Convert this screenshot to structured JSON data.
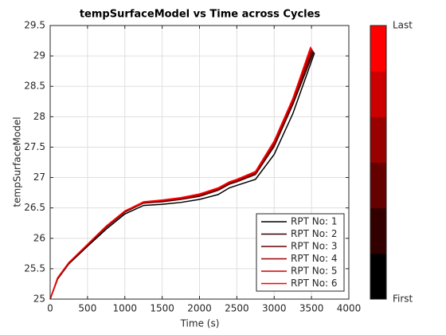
{
  "chart_data": {
    "type": "line",
    "title": "tempSurfaceModel vs Time  across Cycles",
    "xlabel": "Time (s)",
    "ylabel": "tempSurfaceModel",
    "xlim": [
      0,
      4000
    ],
    "xticks": [
      0,
      500,
      1000,
      1500,
      2000,
      2500,
      3000,
      3500,
      4000
    ],
    "ylim": [
      25,
      29.5
    ],
    "yticks": [
      25,
      25.5,
      26,
      26.5,
      27,
      27.5,
      28,
      28.5,
      29,
      29.5
    ],
    "grid": true,
    "legend": "lower right",
    "colorbar": {
      "top_label": "Last",
      "bottom_label": "First"
    },
    "series": [
      {
        "name": "RPT No: 1",
        "color": "#000000",
        "x": [
          0,
          100,
          250,
          500,
          750,
          1000,
          1250,
          1500,
          1750,
          2000,
          2250,
          2400,
          2500,
          2750,
          3000,
          3250,
          3540
        ],
        "values": [
          25.0,
          25.33,
          25.58,
          25.87,
          26.15,
          26.4,
          26.54,
          26.56,
          26.59,
          26.64,
          26.72,
          26.83,
          26.87,
          26.97,
          27.38,
          28.05,
          29.05
        ]
      },
      {
        "name": "RPT No: 2",
        "color": "#330000",
        "x": [
          0,
          100,
          250,
          500,
          750,
          1000,
          1250,
          1500,
          1750,
          2000,
          2250,
          2400,
          2500,
          2750,
          3000,
          3250,
          3530
        ],
        "values": [
          25.0,
          25.34,
          25.59,
          25.89,
          26.18,
          26.43,
          26.58,
          26.6,
          26.64,
          26.69,
          26.79,
          26.89,
          26.93,
          27.05,
          27.51,
          28.2,
          29.07
        ]
      },
      {
        "name": "RPT No: 3",
        "color": "#660000",
        "x": [
          0,
          100,
          250,
          500,
          750,
          1000,
          1250,
          1500,
          1750,
          2000,
          2250,
          2400,
          2500,
          2750,
          3000,
          3250,
          3520
        ],
        "values": [
          25.0,
          25.34,
          25.59,
          25.89,
          26.19,
          26.44,
          26.58,
          26.61,
          26.65,
          26.7,
          26.8,
          26.9,
          26.94,
          27.06,
          27.53,
          28.23,
          29.09
        ]
      },
      {
        "name": "RPT No: 4",
        "color": "#990000",
        "x": [
          0,
          100,
          250,
          500,
          750,
          1000,
          1250,
          1500,
          1750,
          2000,
          2250,
          2400,
          2500,
          2750,
          3000,
          3250,
          3510
        ],
        "values": [
          25.0,
          25.35,
          25.6,
          25.89,
          26.19,
          26.44,
          26.59,
          26.62,
          26.65,
          26.71,
          26.81,
          26.91,
          26.95,
          27.07,
          27.56,
          28.25,
          29.11
        ]
      },
      {
        "name": "RPT No: 5",
        "color": "#cc0000",
        "x": [
          0,
          100,
          250,
          500,
          750,
          1000,
          1250,
          1500,
          1750,
          2000,
          2250,
          2400,
          2500,
          2750,
          3000,
          3250,
          3500
        ],
        "values": [
          25.0,
          25.35,
          25.6,
          25.9,
          26.2,
          26.45,
          26.59,
          26.62,
          26.66,
          26.72,
          26.82,
          26.92,
          26.96,
          27.09,
          27.58,
          28.28,
          29.13
        ]
      },
      {
        "name": "RPT No: 6",
        "color": "#ff0000",
        "x": [
          0,
          100,
          250,
          500,
          750,
          1000,
          1250,
          1500,
          1750,
          2000,
          2250,
          2400,
          2500,
          2750,
          3000,
          3250,
          3490
        ],
        "values": [
          25.0,
          25.35,
          25.6,
          25.9,
          26.2,
          26.45,
          26.6,
          26.63,
          26.67,
          26.73,
          26.83,
          26.93,
          26.97,
          27.1,
          27.6,
          28.3,
          29.15
        ]
      }
    ]
  }
}
